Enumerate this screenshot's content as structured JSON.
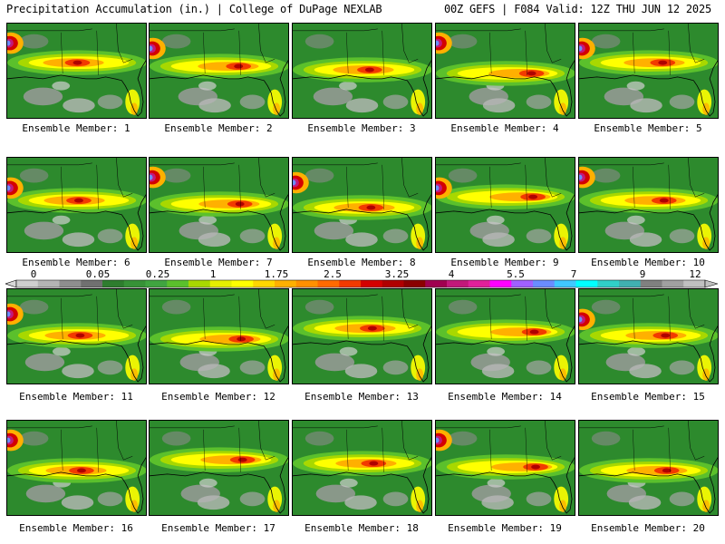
{
  "header": {
    "left_title": "Precipitation Accumulation (in.) | College of DuPage NEXLAB",
    "right_title": "00Z GEFS | F084 Valid: 12Z THU JUN 12 2025"
  },
  "colorbar": {
    "labels": [
      "0",
      "0.05",
      "0.25",
      "1",
      "1.75",
      "2.5",
      "3.25",
      "4",
      "5.5",
      "7",
      "9",
      "12"
    ],
    "colors": [
      "#cfcfcf",
      "#b4b4b4",
      "#8e8e8e",
      "#707070",
      "#2e7d2e",
      "#379237",
      "#40a540",
      "#5bc02c",
      "#a8d800",
      "#e6ef00",
      "#ffff00",
      "#ffd700",
      "#ffb000",
      "#ff9000",
      "#ff6a00",
      "#f23a00",
      "#d40000",
      "#b00000",
      "#8b0000",
      "#a00050",
      "#c2187a",
      "#e0209a",
      "#ff00ff",
      "#a060ff",
      "#6a8cff",
      "#40c8ff",
      "#00ffff",
      "#30d0c8",
      "#40b0b0",
      "#808080",
      "#a0a0a0",
      "#c0c0c0"
    ]
  },
  "panels": [
    {
      "caption": "Ensemble Member: 1",
      "bg": "#2d8a2d"
    },
    {
      "caption": "Ensemble Member: 2",
      "bg": "#2d8a2d"
    },
    {
      "caption": "Ensemble Member: 3",
      "bg": "#2d8a2d"
    },
    {
      "caption": "Ensemble Member: 4",
      "bg": "#2d8a2d"
    },
    {
      "caption": "Ensemble Member: 5",
      "bg": "#2d8a2d"
    },
    {
      "caption": "Ensemble Member: 6",
      "bg": "#2d8a2d"
    },
    {
      "caption": "Ensemble Member: 7",
      "bg": "#2d8a2d"
    },
    {
      "caption": "Ensemble Member: 8",
      "bg": "#2d8a2d"
    },
    {
      "caption": "Ensemble Member: 9",
      "bg": "#2d8a2d"
    },
    {
      "caption": "Ensemble Member: 10",
      "bg": "#2d8a2d"
    },
    {
      "caption": "Ensemble Member: 11",
      "bg": "#2d8a2d"
    },
    {
      "caption": "Ensemble Member: 12",
      "bg": "#2d8a2d"
    },
    {
      "caption": "Ensemble Member: 13",
      "bg": "#2d8a2d"
    },
    {
      "caption": "Ensemble Member: 14",
      "bg": "#2d8a2d"
    },
    {
      "caption": "Ensemble Member: 15",
      "bg": "#2d8a2d"
    },
    {
      "caption": "Ensemble Member: 16",
      "bg": "#2d8a2d"
    },
    {
      "caption": "Ensemble Member: 17",
      "bg": "#2d8a2d"
    },
    {
      "caption": "Ensemble Member: 18",
      "bg": "#2d8a2d"
    },
    {
      "caption": "Ensemble Member: 19",
      "bg": "#2d8a2d"
    },
    {
      "caption": "Ensemble Member: 20",
      "bg": "#2d8a2d"
    }
  ]
}
